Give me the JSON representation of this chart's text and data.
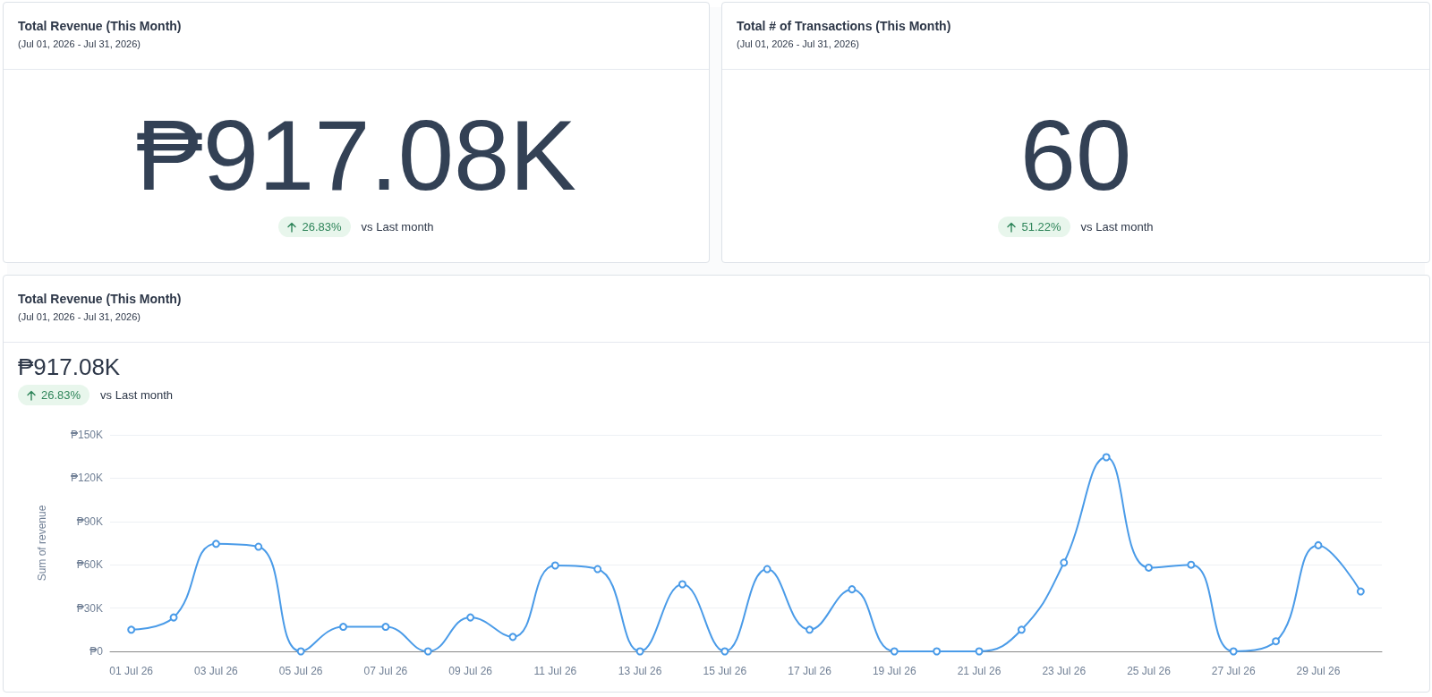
{
  "chart_data": [
    {
      "type": "other",
      "title": "Total Revenue (This Month)",
      "subtitle": "(Jul 01, 2026 - Jul 31, 2026)",
      "annotations": [
        "₱917.08K",
        "26.83%",
        "vs Last month"
      ]
    },
    {
      "type": "other",
      "title": "Total # of Transactions (This Month)",
      "subtitle": "(Jul 01, 2026 - Jul 31, 2026)",
      "annotations": [
        "60",
        "51.22%",
        "vs Last month"
      ]
    },
    {
      "type": "line",
      "title": "Total Revenue (This Month)",
      "subtitle": "(Jul 01, 2026 - Jul 31, 2026)",
      "annotations": [
        "₱917.08K",
        "26.83%",
        "vs Last month"
      ],
      "ylabel": "Sum of revenue",
      "categories": [
        "01 Jul 26",
        null,
        "03 Jul 26",
        null,
        "05 Jul 26",
        null,
        "07 Jul 26",
        null,
        "09 Jul 26",
        null,
        "11 Jul 26",
        null,
        "13 Jul 26",
        null,
        "15 Jul 26",
        null,
        "17 Jul 26",
        null,
        "19 Jul 26",
        null,
        "21 Jul 26",
        null,
        "23 Jul 26",
        null,
        "25 Jul 26",
        null,
        "27 Jul 26",
        null,
        "29 Jul 26",
        null
      ],
      "series": [
        {
          "color": "#4a9be8",
          "values": [
            15,
            23.5,
            74.5,
            72.5,
            0,
            17,
            17,
            0,
            23.5,
            10,
            59.5,
            57,
            0,
            46.5,
            0,
            57,
            15,
            43,
            0,
            0,
            0,
            15,
            61.5,
            134.5,
            58,
            60,
            0,
            7,
            73.5,
            41.5
          ]
        }
      ],
      "ylim": [
        0,
        150
      ],
      "yticks": [
        {
          "value": 0,
          "label": "₱0"
        },
        {
          "value": 30,
          "label": "₱30K"
        },
        {
          "value": 60,
          "label": "₱60K"
        },
        {
          "value": 90,
          "label": "₱90K"
        },
        {
          "value": 120,
          "label": "₱120K"
        },
        {
          "value": 150,
          "label": "₱150K"
        }
      ],
      "grid": "y",
      "marker": "circle",
      "line_style": "solid"
    }
  ]
}
